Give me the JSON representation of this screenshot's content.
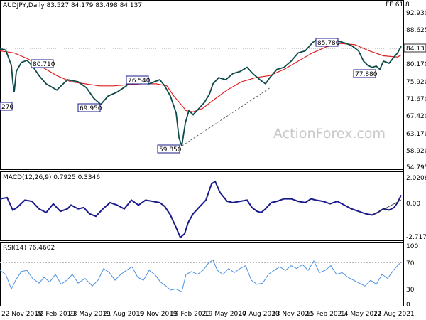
{
  "main_panel": {
    "title": "AUDJPY,Daily  83.527 84.179 83.498 84.137",
    "fe_label": "FE 61.8",
    "y_ticks": [
      "92.930",
      "88.625",
      "84.137",
      "80.170",
      "75.920",
      "71.670",
      "67.420",
      "63.170",
      "58.920",
      "54.795"
    ],
    "annotations": [
      "85.780",
      "80.710",
      "76.540",
      "69.950",
      "77.880",
      "59.850",
      "270"
    ],
    "watermark": "ActionForex.com"
  },
  "macd_panel": {
    "title": "MACD(12,26,9) 0.7925 0.3346",
    "y_ticks": [
      "2.0208",
      "0.00",
      "-2.717"
    ]
  },
  "rsi_panel": {
    "title": "RSI(14) 76.4602",
    "y_ticks": [
      "100",
      "70",
      "30",
      "0"
    ]
  },
  "x_axis_labels": [
    "22 Nov 2018",
    "22 Feb 2019",
    "23 May 2019",
    "21 Aug 2019",
    "19 Nov 2019",
    "19 Feb 2020",
    "19 May 2020",
    "17 Aug 2020",
    "13 Nov 2020",
    "15 Feb 2021",
    "14 May 2021",
    "12 Aug 2021"
  ],
  "colors": {
    "price": "#0d4a4a",
    "ma": "#e02020",
    "macd": "#1a1a8c",
    "signal": "#888888",
    "rsi": "#4a90e2",
    "box": "#1a1a8c"
  },
  "chart_data": [
    {
      "type": "line",
      "title": "AUDJPY,Daily  83.527 84.179 83.498 84.137",
      "x": [
        "22 Nov 2018",
        "22 Feb 2019",
        "23 May 2019",
        "21 Aug 2019",
        "19 Nov 2019",
        "19 Feb 2020",
        "19 May 2020",
        "17 Aug 2020",
        "13 Nov 2020",
        "15 Feb 2021",
        "14 May 2021",
        "12 Aug 2021"
      ],
      "ylim": [
        54.795,
        92.93
      ],
      "y_ticks": [
        92.93,
        88.625,
        84.137,
        80.17,
        75.92,
        71.67,
        67.42,
        63.17,
        58.92,
        54.795
      ],
      "series": [
        {
          "name": "price",
          "points": [
            [
              0,
              83.5
            ],
            [
              8,
              83.2
            ],
            [
              16,
              79.5
            ],
            [
              18,
              75.5
            ],
            [
              20,
              73.0
            ],
            [
              23,
              78.0
            ],
            [
              30,
              80.2
            ],
            [
              38,
              80.7
            ],
            [
              45,
              79.5
            ],
            [
              55,
              77.0
            ],
            [
              65,
              75.0
            ],
            [
              80,
              73.5
            ],
            [
              95,
              76.0
            ],
            [
              110,
              75.5
            ],
            [
              122,
              74.0
            ],
            [
              132,
              71.5
            ],
            [
              142,
              70.0
            ],
            [
              152,
              72.0
            ],
            [
              165,
              73.0
            ],
            [
              178,
              74.5
            ],
            [
              186,
              76.5
            ],
            [
              195,
              75.5
            ],
            [
              210,
              75.0
            ],
            [
              225,
              76.0
            ],
            [
              232,
              74.5
            ],
            [
              240,
              72.0
            ],
            [
              248,
              68.0
            ],
            [
              252,
              62.0
            ],
            [
              256,
              59.9
            ],
            [
              261,
              65.5
            ],
            [
              266,
              68.5
            ],
            [
              272,
              67.5
            ],
            [
              280,
              69.0
            ],
            [
              288,
              70.5
            ],
            [
              295,
              72.5
            ],
            [
              300,
              75.0
            ],
            [
              308,
              76.5
            ],
            [
              318,
              76.0
            ],
            [
              328,
              77.5
            ],
            [
              338,
              78.0
            ],
            [
              348,
              79.0
            ],
            [
              356,
              77.5
            ],
            [
              366,
              76.0
            ],
            [
              374,
              75.0
            ],
            [
              380,
              76.5
            ],
            [
              390,
              78.5
            ],
            [
              400,
              79.0
            ],
            [
              410,
              80.5
            ],
            [
              420,
              82.5
            ],
            [
              430,
              83.0
            ],
            [
              440,
              85.0
            ],
            [
              448,
              86.0
            ],
            [
              458,
              85.5
            ],
            [
              468,
              85.8
            ],
            [
              478,
              85.3
            ],
            [
              488,
              84.8
            ],
            [
              496,
              84.2
            ],
            [
              505,
              83.0
            ],
            [
              512,
              80.5
            ],
            [
              518,
              79.5
            ],
            [
              524,
              79.0
            ],
            [
              530,
              79.3
            ],
            [
              535,
              78.5
            ],
            [
              540,
              80.5
            ],
            [
              548,
              80.0
            ],
            [
              555,
              81.5
            ],
            [
              560,
              82.5
            ],
            [
              565,
              84.1
            ]
          ]
        },
        {
          "name": "ma",
          "points": [
            [
              0,
              83.0
            ],
            [
              20,
              82.5
            ],
            [
              40,
              81.0
            ],
            [
              60,
              79.0
            ],
            [
              80,
              77.0
            ],
            [
              100,
              75.5
            ],
            [
              120,
              75.0
            ],
            [
              140,
              74.5
            ],
            [
              160,
              74.5
            ],
            [
              180,
              74.8
            ],
            [
              200,
              75.0
            ],
            [
              220,
              75.0
            ],
            [
              235,
              74.5
            ],
            [
              245,
              72.0
            ],
            [
              255,
              70.0
            ],
            [
              262,
              68.5
            ],
            [
              272,
              68.2
            ],
            [
              285,
              69.0
            ],
            [
              300,
              71.0
            ],
            [
              320,
              73.5
            ],
            [
              340,
              75.5
            ],
            [
              360,
              76.5
            ],
            [
              380,
              77.0
            ],
            [
              400,
              78.5
            ],
            [
              420,
              80.5
            ],
            [
              440,
              82.5
            ],
            [
              460,
              84.0
            ],
            [
              480,
              84.8
            ],
            [
              500,
              84.5
            ],
            [
              520,
              83.0
            ],
            [
              540,
              81.8
            ],
            [
              560,
              81.5
            ],
            [
              565,
              82.0
            ]
          ]
        },
        {
          "name": "trend",
          "points": [
            [
              256,
              59.9
            ],
            [
              380,
              74.0
            ]
          ]
        }
      ]
    },
    {
      "type": "line",
      "title": "MACD(12,26,9) 0.7925 0.3346",
      "ylim": [
        -2.717,
        2.0208
      ],
      "series": [
        {
          "name": "MACD",
          "points": [
            [
              0,
              0.5
            ],
            [
              10,
              0.6
            ],
            [
              18,
              -0.4
            ],
            [
              24,
              -0.2
            ],
            [
              35,
              0.4
            ],
            [
              45,
              0.3
            ],
            [
              55,
              -0.3
            ],
            [
              65,
              -0.6
            ],
            [
              75,
              0.1
            ],
            [
              85,
              -0.5
            ],
            [
              95,
              -0.3
            ],
            [
              100,
              0.0
            ],
            [
              110,
              -0.3
            ],
            [
              118,
              -0.2
            ],
            [
              126,
              -0.7
            ],
            [
              135,
              -0.9
            ],
            [
              145,
              -0.3
            ],
            [
              155,
              0.2
            ],
            [
              165,
              0.0
            ],
            [
              175,
              -0.3
            ],
            [
              185,
              0.4
            ],
            [
              195,
              0.0
            ],
            [
              205,
              0.4
            ],
            [
              215,
              0.3
            ],
            [
              225,
              0.2
            ],
            [
              232,
              -0.1
            ],
            [
              240,
              -0.8
            ],
            [
              248,
              -1.8
            ],
            [
              254,
              -2.6
            ],
            [
              260,
              -2.3
            ],
            [
              265,
              -1.4
            ],
            [
              272,
              -0.7
            ],
            [
              280,
              -0.2
            ],
            [
              290,
              0.4
            ],
            [
              298,
              1.7
            ],
            [
              303,
              1.9
            ],
            [
              310,
              1.0
            ],
            [
              320,
              0.3
            ],
            [
              328,
              0.2
            ],
            [
              338,
              0.3
            ],
            [
              348,
              0.4
            ],
            [
              355,
              -0.2
            ],
            [
              362,
              -0.5
            ],
            [
              368,
              -0.6
            ],
            [
              374,
              -0.3
            ],
            [
              382,
              0.2
            ],
            [
              390,
              0.3
            ],
            [
              400,
              0.5
            ],
            [
              410,
              0.5
            ],
            [
              420,
              0.3
            ],
            [
              430,
              0.2
            ],
            [
              438,
              0.5
            ],
            [
              445,
              0.4
            ],
            [
              455,
              0.3
            ],
            [
              465,
              0.1
            ],
            [
              475,
              0.3
            ],
            [
              485,
              0.0
            ],
            [
              495,
              -0.3
            ],
            [
              505,
              -0.5
            ],
            [
              515,
              -0.7
            ],
            [
              524,
              -0.8
            ],
            [
              532,
              -0.6
            ],
            [
              540,
              -0.3
            ],
            [
              548,
              -0.4
            ],
            [
              555,
              -0.2
            ],
            [
              560,
              0.2
            ],
            [
              565,
              0.8
            ]
          ]
        },
        {
          "name": "signal",
          "points": [
            [
              525,
              -0.8
            ],
            [
              565,
              0.4
            ]
          ]
        }
      ]
    },
    {
      "type": "line",
      "title": "RSI(14) 76.4602",
      "ylim": [
        0,
        100
      ],
      "series": [
        {
          "name": "RSI",
          "points": [
            [
              0,
              62
            ],
            [
              8,
              55
            ],
            [
              16,
              30
            ],
            [
              22,
              45
            ],
            [
              30,
              60
            ],
            [
              38,
              62
            ],
            [
              46,
              48
            ],
            [
              55,
              40
            ],
            [
              62,
              50
            ],
            [
              70,
              42
            ],
            [
              78,
              55
            ],
            [
              86,
              38
            ],
            [
              94,
              45
            ],
            [
              102,
              55
            ],
            [
              110,
              40
            ],
            [
              120,
              48
            ],
            [
              130,
              35
            ],
            [
              138,
              45
            ],
            [
              146,
              65
            ],
            [
              154,
              58
            ],
            [
              162,
              45
            ],
            [
              170,
              55
            ],
            [
              178,
              62
            ],
            [
              186,
              68
            ],
            [
              194,
              50
            ],
            [
              202,
              45
            ],
            [
              210,
              62
            ],
            [
              218,
              55
            ],
            [
              226,
              42
            ],
            [
              234,
              35
            ],
            [
              240,
              28
            ],
            [
              248,
              30
            ],
            [
              256,
              25
            ],
            [
              262,
              55
            ],
            [
              270,
              60
            ],
            [
              278,
              55
            ],
            [
              286,
              62
            ],
            [
              294,
              75
            ],
            [
              300,
              80
            ],
            [
              306,
              62
            ],
            [
              314,
              55
            ],
            [
              322,
              65
            ],
            [
              330,
              58
            ],
            [
              338,
              65
            ],
            [
              346,
              70
            ],
            [
              354,
              45
            ],
            [
              362,
              38
            ],
            [
              370,
              40
            ],
            [
              378,
              55
            ],
            [
              386,
              62
            ],
            [
              394,
              68
            ],
            [
              402,
              62
            ],
            [
              410,
              70
            ],
            [
              418,
              65
            ],
            [
              426,
              72
            ],
            [
              434,
              62
            ],
            [
              442,
              78
            ],
            [
              450,
              58
            ],
            [
              458,
              62
            ],
            [
              466,
              70
            ],
            [
              474,
              55
            ],
            [
              482,
              58
            ],
            [
              490,
              50
            ],
            [
              498,
              45
            ],
            [
              506,
              40
            ],
            [
              514,
              35
            ],
            [
              522,
              45
            ],
            [
              530,
              38
            ],
            [
              538,
              55
            ],
            [
              546,
              48
            ],
            [
              554,
              62
            ],
            [
              560,
              70
            ],
            [
              565,
              76.5
            ]
          ]
        }
      ]
    }
  ]
}
